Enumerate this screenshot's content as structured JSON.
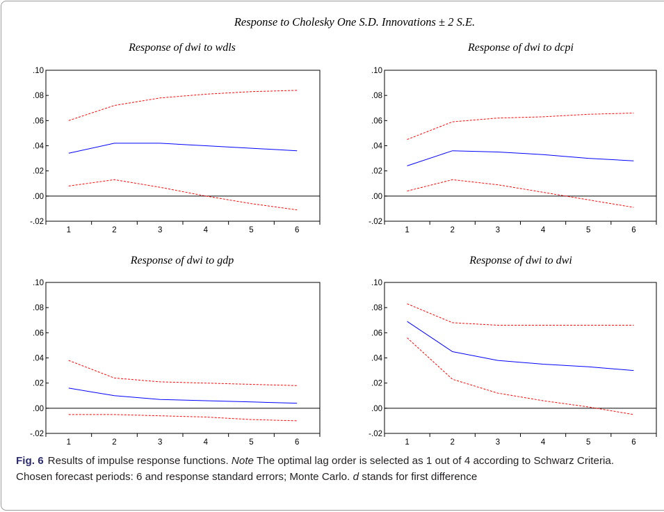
{
  "figure_title": "Response to Cholesky One S.D. Innovations ± 2 S.E.",
  "caption": {
    "label": "Fig. 6",
    "text_before_note": "Results of impulse response functions.",
    "note_word": "Note",
    "text_after_note": "The optimal lag order is selected as 1 out of 4 according to Schwarz Criteria. Chosen forecast periods: 6 and response standard errors; Monte Carlo.",
    "d_letter": "d",
    "text_end": "stands for first difference"
  },
  "colors": {
    "response": "#0000ff",
    "bands": "#ff0000",
    "zero_line": "#000000"
  },
  "chart_data": [
    {
      "type": "line",
      "title": "Response of dwi to wdls",
      "x": [
        1,
        2,
        3,
        4,
        5,
        6
      ],
      "y_ticks": [
        ".10",
        ".08",
        ".06",
        ".04",
        ".02",
        ".00",
        "-.02"
      ],
      "ylim": [
        -0.02,
        0.1
      ],
      "series": [
        {
          "values": [
            0.034,
            0.042,
            0.042,
            0.04,
            0.038,
            0.036
          ],
          "style": "solid"
        },
        {
          "values": [
            0.06,
            0.072,
            0.078,
            0.081,
            0.083,
            0.084
          ],
          "style": "dashed"
        },
        {
          "values": [
            0.008,
            0.013,
            0.007,
            0.0,
            -0.006,
            -0.011
          ],
          "style": "dashed"
        }
      ]
    },
    {
      "type": "line",
      "title": "Response of dwi to dcpi",
      "x": [
        1,
        2,
        3,
        4,
        5,
        6
      ],
      "y_ticks": [
        ".10",
        ".08",
        ".06",
        ".04",
        ".02",
        ".00",
        "-.02"
      ],
      "ylim": [
        -0.02,
        0.1
      ],
      "series": [
        {
          "values": [
            0.024,
            0.036,
            0.035,
            0.033,
            0.03,
            0.028
          ],
          "style": "solid"
        },
        {
          "values": [
            0.045,
            0.059,
            0.062,
            0.063,
            0.065,
            0.066
          ],
          "style": "dashed"
        },
        {
          "values": [
            0.004,
            0.013,
            0.009,
            0.003,
            -0.003,
            -0.009
          ],
          "style": "dashed"
        }
      ]
    },
    {
      "type": "line",
      "title": "Response of dwi to gdp",
      "x": [
        1,
        2,
        3,
        4,
        5,
        6
      ],
      "y_ticks": [
        ".10",
        ".08",
        ".06",
        ".04",
        ".02",
        ".00",
        "-.02"
      ],
      "ylim": [
        -0.02,
        0.1
      ],
      "series": [
        {
          "values": [
            0.016,
            0.01,
            0.007,
            0.006,
            0.005,
            0.004
          ],
          "style": "solid"
        },
        {
          "values": [
            0.038,
            0.024,
            0.021,
            0.02,
            0.019,
            0.018
          ],
          "style": "dashed"
        },
        {
          "values": [
            -0.005,
            -0.005,
            -0.006,
            -0.007,
            -0.009,
            -0.01
          ],
          "style": "dashed"
        }
      ]
    },
    {
      "type": "line",
      "title": "Response of dwi to dwi",
      "x": [
        1,
        2,
        3,
        4,
        5,
        6
      ],
      "y_ticks": [
        ".10",
        ".08",
        ".06",
        ".04",
        ".02",
        ".00",
        "-.02"
      ],
      "ylim": [
        -0.02,
        0.1
      ],
      "series": [
        {
          "values": [
            0.069,
            0.045,
            0.038,
            0.035,
            0.033,
            0.03
          ],
          "style": "solid"
        },
        {
          "values": [
            0.083,
            0.068,
            0.066,
            0.066,
            0.066,
            0.066
          ],
          "style": "dashed"
        },
        {
          "values": [
            0.056,
            0.023,
            0.012,
            0.006,
            0.001,
            -0.005
          ],
          "style": "dashed"
        }
      ]
    }
  ]
}
